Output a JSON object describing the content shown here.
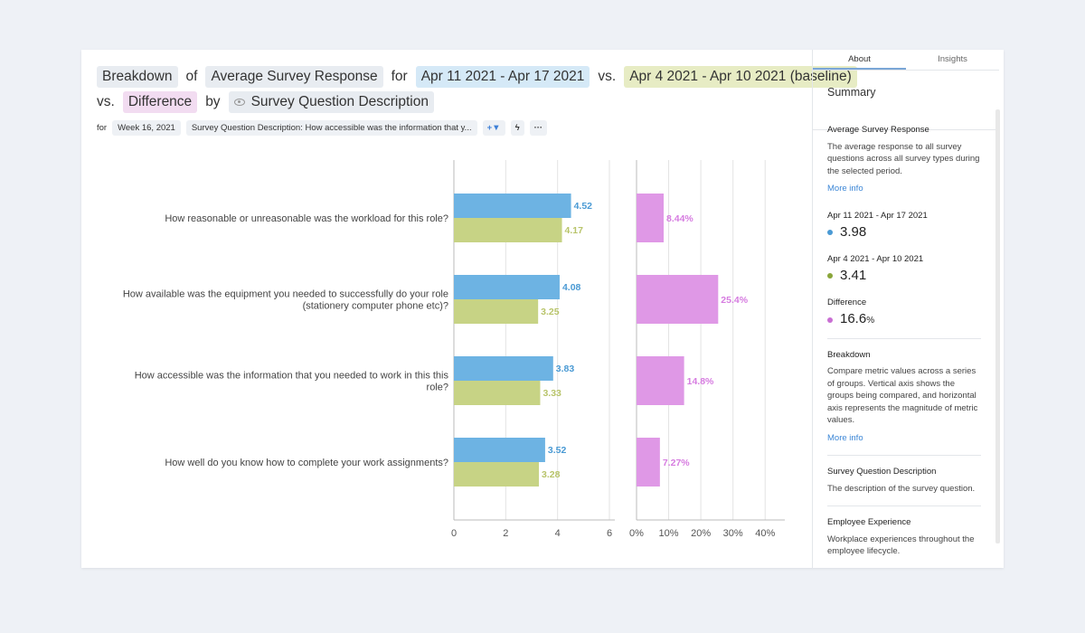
{
  "title": {
    "breakdown": "Breakdown",
    "of": "of",
    "metric": "Average Survey Response",
    "for": "for",
    "period": "Apr 11 2021 - Apr 17 2021",
    "vs1": "vs.",
    "baseline": "Apr 4 2021 - Apr 10 2021 (baseline)",
    "vs2": "vs.",
    "difference": "Difference",
    "by": "by",
    "dimension": "Survey Question Description"
  },
  "filters": {
    "for": "for",
    "week": "Week 16, 2021",
    "question": "Survey Question Description: How accessible was the information that y...",
    "add_filter": "+▼",
    "bolt": "ϟ",
    "more": "···"
  },
  "colors": {
    "current": "#6db3e3",
    "baseline": "#c7d385",
    "difference": "#df98e6",
    "current_text": "#4a9ad4",
    "baseline_text": "#b8c46a",
    "difference_text": "#d67ce0"
  },
  "chart_data": [
    {
      "type": "bar",
      "orientation": "horizontal",
      "categories": [
        "How reasonable or unreasonable was the workload for this role?",
        "How available was the equipment you needed to successfully do your role (stationery computer phone etc)?",
        "How accessible was the information that you needed to work in this this role?",
        "How well do you know how to complete your work assignments?"
      ],
      "category_lines": [
        [
          "How reasonable or unreasonable was the workload for this role?"
        ],
        [
          "How available was the equipment you needed to successfully do your role",
          "(stationery computer phone etc)?"
        ],
        [
          "How accessible was the information that you needed to work in this this",
          "role?"
        ],
        [
          "How well do you know how to complete your work assignments?"
        ]
      ],
      "series": [
        {
          "name": "Apr 11 2021 - Apr 17 2021",
          "values": [
            4.52,
            4.08,
            3.83,
            3.52
          ],
          "labels": [
            "4.52",
            "4.08",
            "3.83",
            "3.52"
          ]
        },
        {
          "name": "Apr 4 2021 - Apr 10 2021 (baseline)",
          "values": [
            4.17,
            3.25,
            3.33,
            3.28
          ],
          "labels": [
            "4.17",
            "3.25",
            "3.33",
            "3.28"
          ]
        }
      ],
      "xlim": [
        0,
        6
      ],
      "ticks": [
        "0",
        "2",
        "4",
        "6"
      ],
      "tick_values": [
        0,
        2,
        4,
        6
      ]
    },
    {
      "type": "bar",
      "orientation": "horizontal",
      "series": [
        {
          "name": "Difference",
          "values": [
            8.44,
            25.4,
            14.8,
            7.27
          ],
          "labels": [
            "8.44%",
            "25.4%",
            "14.8%",
            "7.27%"
          ]
        }
      ],
      "xlim": [
        0,
        45
      ],
      "ticks": [
        "0%",
        "10%",
        "20%",
        "30%",
        "40%"
      ],
      "tick_values": [
        0,
        10,
        20,
        30,
        40
      ]
    }
  ],
  "panel": {
    "tabs": [
      "About",
      "Insights"
    ],
    "summary": "Summary",
    "metric_title": "Average Survey Response",
    "metric_desc": "The average response to all survey questions across all survey types during the selected period.",
    "more_info": "More info",
    "current_label": "Apr 11 2021 - Apr 17 2021",
    "current_value": "3.98",
    "baseline_label": "Apr 4 2021 - Apr 10 2021",
    "baseline_value": "3.41",
    "diff_label": "Difference",
    "diff_value": "16.6",
    "diff_unit": "%",
    "breakdown_title": "Breakdown",
    "breakdown_desc": "Compare metric values across a series of groups. Vertical axis shows the groups being compared, and horizontal axis represents the magnitude of metric values.",
    "more_info2": "More info",
    "sqd_title": "Survey Question Description",
    "sqd_desc": "The description of the survey question.",
    "ee_title": "Employee Experience",
    "ee_desc": "Workplace experiences throughout the employee lifecycle."
  }
}
